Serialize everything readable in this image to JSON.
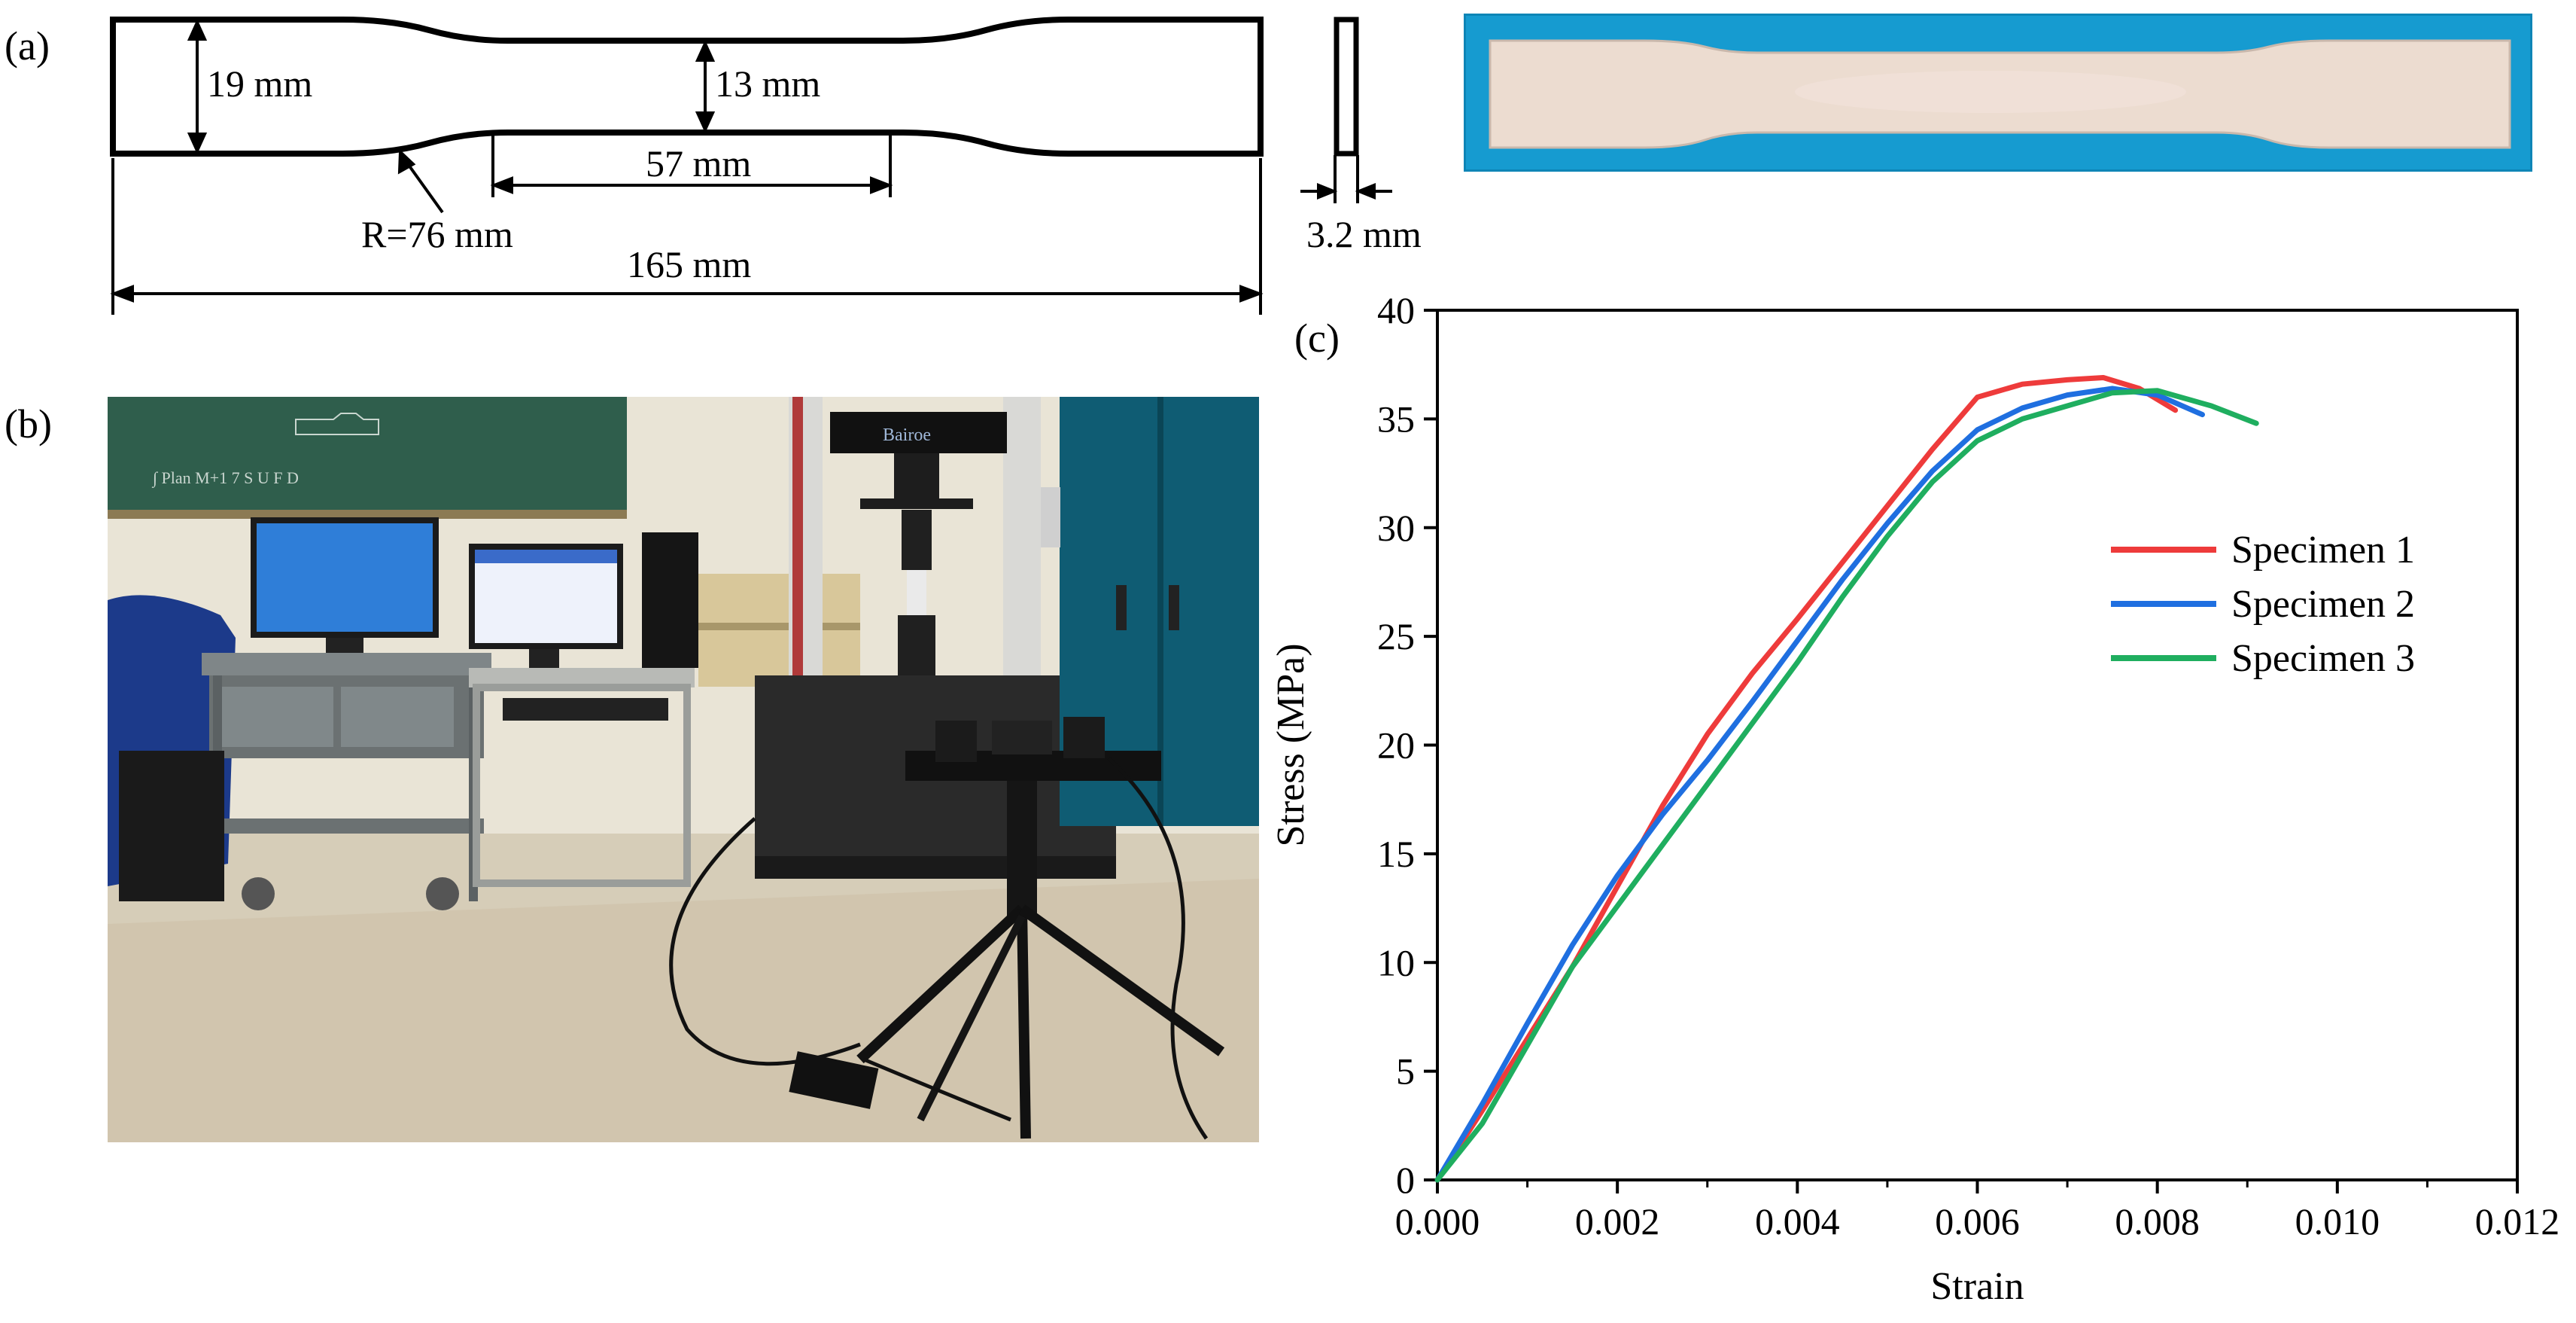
{
  "panel_labels": {
    "a": "(a)",
    "b": "(b)",
    "c": "(c)"
  },
  "dimensions": {
    "grip_width": "19 mm",
    "gauge_width": "13 mm",
    "gauge_length": "57 mm",
    "radius": "R=76 mm",
    "total_length": "165 mm",
    "thickness": "3.2 mm"
  },
  "photo_b": {
    "machine_brand": "Bairoe"
  },
  "colors": {
    "specimen_1": "#ee3b3b",
    "specimen_2": "#1f6fe0",
    "specimen_3": "#1fae5f",
    "specimen_photo_bg": "#169bd0",
    "specimen_photo_body": "#ecdcd0"
  },
  "chart_data": {
    "type": "line",
    "xlabel": "Strain",
    "ylabel": "Stress (MPa)",
    "xlim": [
      0,
      0.012
    ],
    "ylim": [
      0,
      40
    ],
    "xticks": [
      "0.000",
      "0.002",
      "0.004",
      "0.006",
      "0.008",
      "0.010",
      "0.012"
    ],
    "yticks": [
      "0",
      "5",
      "10",
      "15",
      "20",
      "25",
      "30",
      "35",
      "40"
    ],
    "legend_position": "right-middle",
    "series": [
      {
        "name": "Specimen 1",
        "color": "#ee3b3b",
        "x": [
          0,
          0.0005,
          0.001,
          0.0015,
          0.002,
          0.0025,
          0.003,
          0.0035,
          0.004,
          0.0045,
          0.005,
          0.0055,
          0.006,
          0.0065,
          0.007,
          0.0074,
          0.0078,
          0.0082
        ],
        "y": [
          0,
          3.2,
          6.5,
          9.8,
          13.5,
          17.2,
          20.5,
          23.3,
          25.8,
          28.4,
          31.0,
          33.6,
          36.0,
          36.6,
          36.8,
          36.9,
          36.4,
          35.4
        ]
      },
      {
        "name": "Specimen 2",
        "color": "#1f6fe0",
        "x": [
          0,
          0.0005,
          0.001,
          0.0015,
          0.002,
          0.0025,
          0.003,
          0.0035,
          0.004,
          0.0045,
          0.005,
          0.0055,
          0.006,
          0.0065,
          0.007,
          0.0075,
          0.008,
          0.0085
        ],
        "y": [
          0,
          3.5,
          7.2,
          10.8,
          14.0,
          16.8,
          19.3,
          22.0,
          24.8,
          27.6,
          30.2,
          32.6,
          34.5,
          35.5,
          36.1,
          36.4,
          36.1,
          35.2
        ]
      },
      {
        "name": "Specimen 3",
        "color": "#1fae5f",
        "x": [
          0,
          0.0005,
          0.001,
          0.0015,
          0.002,
          0.0025,
          0.003,
          0.0035,
          0.004,
          0.0045,
          0.005,
          0.0055,
          0.006,
          0.0065,
          0.007,
          0.0075,
          0.008,
          0.0086,
          0.0091
        ],
        "y": [
          0,
          2.6,
          6.2,
          9.8,
          12.6,
          15.4,
          18.2,
          21.0,
          23.8,
          26.8,
          29.6,
          32.1,
          34.0,
          35.0,
          35.6,
          36.2,
          36.3,
          35.6,
          34.8
        ]
      }
    ]
  }
}
